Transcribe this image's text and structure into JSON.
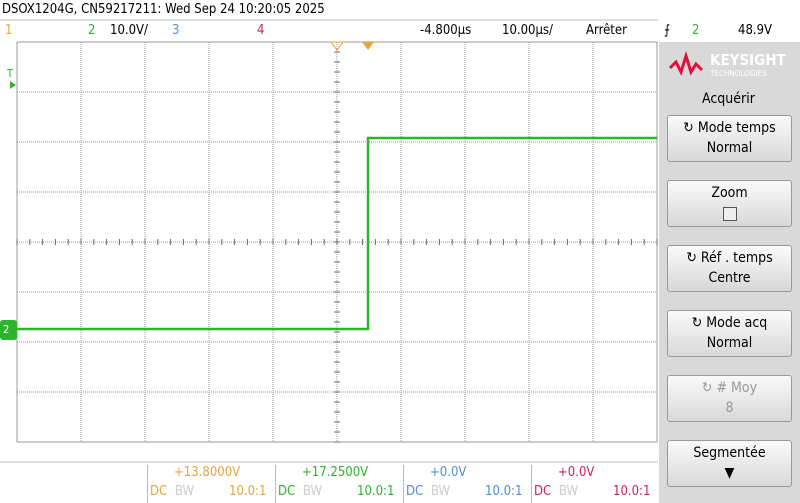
{
  "header": {
    "title": "DSOX1204G, CN59217211: Wed Sep 24 10:20:05 2025"
  },
  "status_bar": {
    "channels": [
      "1",
      "2",
      "3",
      "4"
    ],
    "ch2_scale": "10.0V/",
    "delay": "-4.800µs",
    "timebase": "10.00µs/",
    "run_state": "Arrêter",
    "trigger_source": "2",
    "trigger_level": "48.9V"
  },
  "markers": {
    "trigger": "T",
    "ground": "2"
  },
  "softkeys": {
    "brand": "KEYSIGHT",
    "brand_sub": "TECHNOLOGIES",
    "menu_title": "Acquérir",
    "buttons": [
      {
        "label": "Mode temps",
        "value": "Normal"
      },
      {
        "label": "Zoom"
      },
      {
        "label": "Réf . temps",
        "value": "Centre"
      },
      {
        "label": "Mode acq",
        "value": "Normal"
      },
      {
        "label": "# Moy",
        "value": "8"
      },
      {
        "label": "Segmentée"
      }
    ]
  },
  "channel_readouts": [
    {
      "offset": "+13.8000V",
      "coupling": "DC",
      "bw": "BW",
      "probe": "10.0:1"
    },
    {
      "offset": "+17.2500V",
      "coupling": "DC",
      "bw": "BW",
      "probe": "10.0:1"
    },
    {
      "offset": "+0.0V",
      "coupling": "DC",
      "bw": "BW",
      "probe": "10.0:1"
    },
    {
      "offset": "+0.0V",
      "coupling": "DC",
      "bw": "BW",
      "probe": "10.0:1"
    }
  ]
}
